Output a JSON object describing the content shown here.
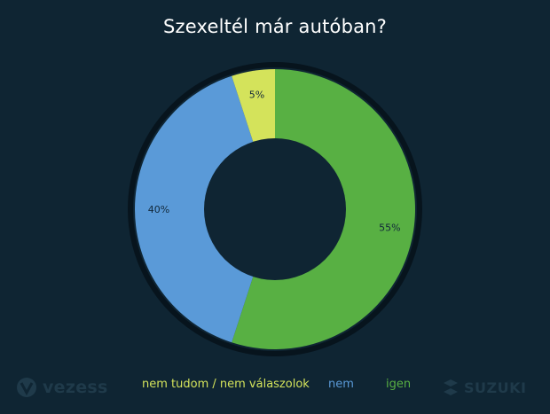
{
  "chart_data": {
    "type": "pie",
    "title": "Szexeltél már autóban?",
    "categories": [
      "igen",
      "nem",
      "nem tudom / nem válaszolok"
    ],
    "values": [
      55,
      40,
      5
    ],
    "value_labels": [
      "55%",
      "40%",
      "5%"
    ],
    "colors": [
      "#58b043",
      "#5a9ad8",
      "#d4e35b"
    ],
    "legend_placement": "bottom"
  },
  "legend": {
    "items": [
      {
        "label": "nem tudom / nem válaszolok",
        "color": "#d4e35b"
      },
      {
        "label": "nem",
        "color": "#5a9ad8"
      },
      {
        "label": "igen",
        "color": "#58b043"
      }
    ]
  },
  "brands": {
    "left": "vezess",
    "right": "SUZUKI"
  },
  "colors": {
    "background": "#0f2533",
    "ring": "#07141d",
    "logo": "#1f3a4a"
  }
}
